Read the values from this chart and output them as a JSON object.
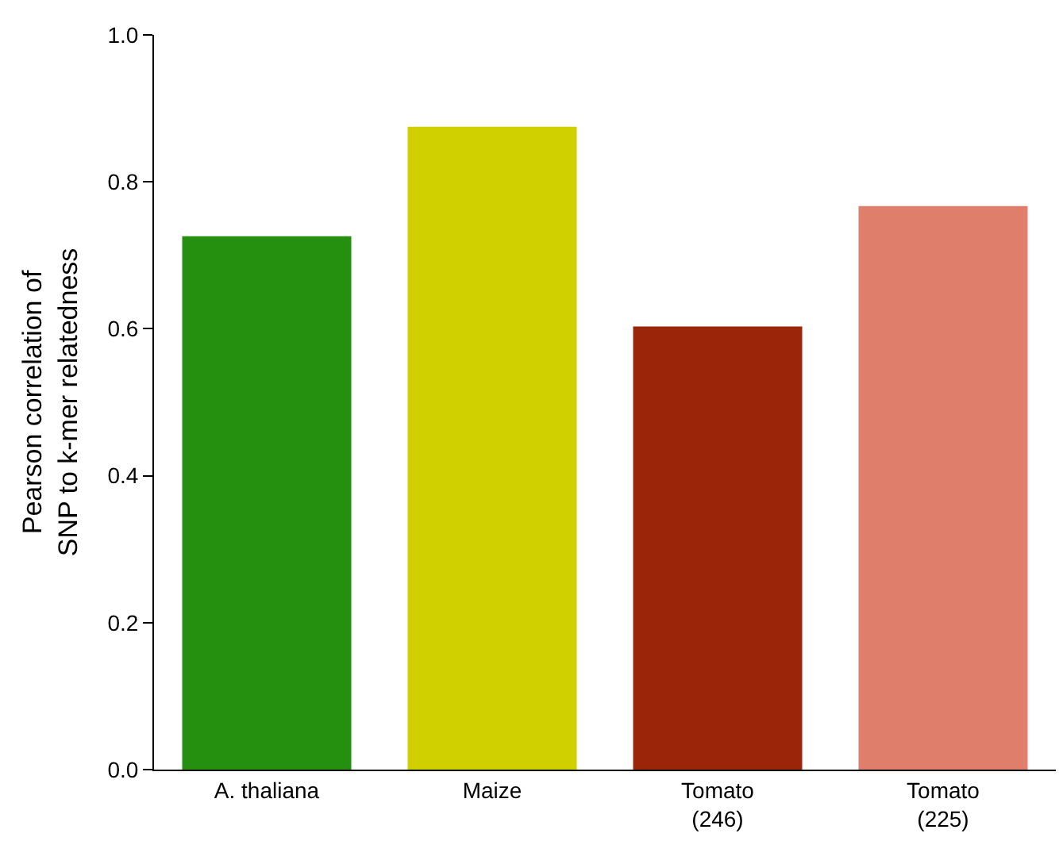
{
  "chart_data": {
    "type": "bar",
    "categories": [
      "A. thaliana",
      "Maize",
      "Tomato\n(246)",
      "Tomato\n(225)"
    ],
    "values": [
      0.726,
      0.875,
      0.603,
      0.767
    ],
    "colors": [
      "#259010",
      "#d0d000",
      "#9a2508",
      "#e07e6c"
    ],
    "ylabel": "Pearson correlation of\nSNP to k-mer relatedness",
    "ylim": [
      0,
      1.0
    ],
    "yticks": [
      {
        "value": 0,
        "label": "0.0"
      },
      {
        "value": 0.2,
        "label": "0.2"
      },
      {
        "value": 0.4,
        "label": "0.4"
      },
      {
        "value": 0.6,
        "label": "0.6"
      },
      {
        "value": 0.8,
        "label": "0.8"
      },
      {
        "value": 1.0,
        "label": "1.0"
      }
    ],
    "grid": false
  }
}
